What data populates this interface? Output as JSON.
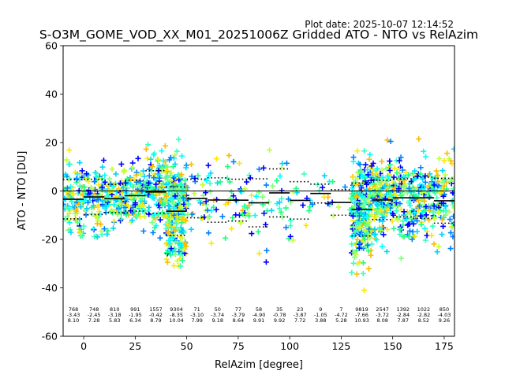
{
  "chart_data": {
    "type": "scatter",
    "title": "S-O3M_GOME_VOD_XX_M01_20251006Z Gridded ATO - NTO vs RelAzim",
    "plot_date": "Plot date: 2025-10-07 12:14:52",
    "xlabel": "RelAzim [degree]",
    "ylabel": "ATO - NTO [DU]",
    "xlim": [
      -10,
      180
    ],
    "ylim": [
      -60,
      60
    ],
    "x_ticks": [
      0,
      25,
      50,
      75,
      100,
      125,
      150,
      175
    ],
    "y_ticks": [
      -60,
      -40,
      -20,
      0,
      20,
      40,
      60
    ],
    "zero_line": 0,
    "marker": "plus",
    "bins": [
      {
        "center": -5,
        "count": "768",
        "mean": "-3.43",
        "std": "8.10"
      },
      {
        "center": 5,
        "count": "748",
        "mean": "-2.45",
        "std": "7.28"
      },
      {
        "center": 15,
        "count": "810",
        "mean": "-3.18",
        "std": "5.83"
      },
      {
        "center": 25,
        "count": "991",
        "mean": "-1.95",
        "std": "6.34"
      },
      {
        "center": 35,
        "count": "1557",
        "mean": "-0.42",
        "std": "8.79"
      },
      {
        "center": 45,
        "count": "9304",
        "mean": "-8.35",
        "std": "10.04"
      },
      {
        "center": 55,
        "count": "71",
        "mean": "-3.10",
        "std": "7.99"
      },
      {
        "center": 65,
        "count": "50",
        "mean": "-3.74",
        "std": "9.18"
      },
      {
        "center": 75,
        "count": "77",
        "mean": "-3.79",
        "std": "8.64"
      },
      {
        "center": 85,
        "count": "58",
        "mean": "-4.90",
        "std": "9.91"
      },
      {
        "center": 95,
        "count": "35",
        "mean": "-0.78",
        "std": "9.92"
      },
      {
        "center": 105,
        "count": "23",
        "mean": "-3.87",
        "std": "7.72"
      },
      {
        "center": 115,
        "count": "9",
        "mean": "-1.05",
        "std": "3.88"
      },
      {
        "center": 125,
        "count": "7",
        "mean": "-4.72",
        "std": "5.28"
      },
      {
        "center": 135,
        "count": "9819",
        "mean": "-7.66",
        "std": "10.93"
      },
      {
        "center": 145,
        "count": "2547",
        "mean": "-3.72",
        "std": "8.08"
      },
      {
        "center": 155,
        "count": "1392",
        "mean": "-2.84",
        "std": "7.87"
      },
      {
        "center": 165,
        "count": "1022",
        "mean": "-2.82",
        "std": "8.52"
      },
      {
        "center": 175,
        "count": "850",
        "mean": "-4.03",
        "std": "9.26"
      }
    ],
    "point_colors": [
      "#00ffff",
      "#39ffc0",
      "#7dff7a",
      "#c1ff36",
      "#ffe600",
      "#ffb900",
      "#0080ff",
      "#0000ff",
      "#00d4ff",
      "#1aff7f"
    ]
  }
}
